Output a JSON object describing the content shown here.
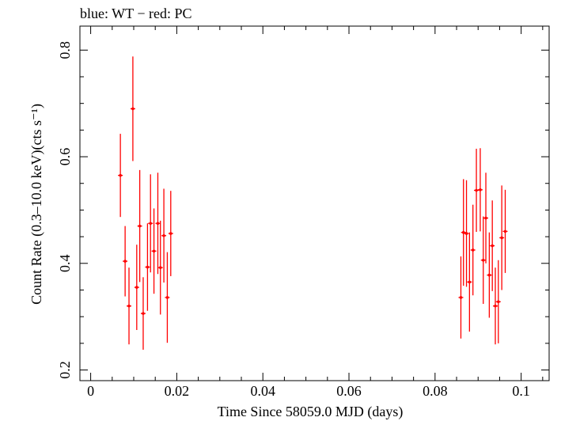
{
  "header": {
    "title": "blue: WT − red: PC"
  },
  "colors": {
    "pc": "#ff0000",
    "axis": "#000000",
    "background": "#ffffff"
  },
  "chart_data": {
    "type": "scatter",
    "title": "blue: WT − red: PC",
    "xlabel": "Time Since 58059.0 MJD (days)",
    "ylabel": "Count Rate (0.3–10.0 keV)(cts s⁻¹)",
    "xlim": [
      -0.0025,
      0.1065
    ],
    "ylim": [
      0.18,
      0.845
    ],
    "xticks": {
      "values": [
        0,
        0.02,
        0.04,
        0.06,
        0.08,
        0.1
      ],
      "labels": [
        "0",
        "0.02",
        "0.04",
        "0.06",
        "0.08",
        "0.1"
      ]
    },
    "yticks": {
      "values": [
        0.2,
        0.4,
        0.6,
        0.8
      ],
      "labels": [
        "0.2",
        "0.4",
        "0.6",
        "0.8"
      ]
    },
    "grid": false,
    "legend": "none",
    "series": [
      {
        "color": "#ff0000",
        "points": [
          {
            "x": 0.0069,
            "y": 0.565,
            "yerr": 0.078
          },
          {
            "x": 0.008,
            "y": 0.404,
            "yerr": 0.066
          },
          {
            "x": 0.0089,
            "y": 0.32,
            "yerr": 0.072
          },
          {
            "x": 0.0098,
            "y": 0.69,
            "yerr": 0.098
          },
          {
            "x": 0.0107,
            "y": 0.355,
            "yerr": 0.08
          },
          {
            "x": 0.0114,
            "y": 0.47,
            "yerr": 0.105
          },
          {
            "x": 0.0122,
            "y": 0.306,
            "yerr": 0.068
          },
          {
            "x": 0.0132,
            "y": 0.393,
            "yerr": 0.082
          },
          {
            "x": 0.0139,
            "y": 0.475,
            "yerr": 0.092
          },
          {
            "x": 0.0147,
            "y": 0.423,
            "yerr": 0.08
          },
          {
            "x": 0.0156,
            "y": 0.475,
            "yerr": 0.095
          },
          {
            "x": 0.0162,
            "y": 0.392,
            "yerr": 0.088
          },
          {
            "x": 0.017,
            "y": 0.452,
            "yerr": 0.088
          },
          {
            "x": 0.0178,
            "y": 0.336,
            "yerr": 0.085
          },
          {
            "x": 0.0186,
            "y": 0.456,
            "yerr": 0.08
          },
          {
            "x": 0.086,
            "y": 0.336,
            "yerr": 0.077
          },
          {
            "x": 0.0866,
            "y": 0.458,
            "yerr": 0.1
          },
          {
            "x": 0.0873,
            "y": 0.456,
            "yerr": 0.1
          },
          {
            "x": 0.088,
            "y": 0.365,
            "yerr": 0.093
          },
          {
            "x": 0.0888,
            "y": 0.425,
            "yerr": 0.085
          },
          {
            "x": 0.0896,
            "y": 0.537,
            "yerr": 0.078
          },
          {
            "x": 0.0905,
            "y": 0.538,
            "yerr": 0.078
          },
          {
            "x": 0.0912,
            "y": 0.406,
            "yerr": 0.082
          },
          {
            "x": 0.0918,
            "y": 0.485,
            "yerr": 0.085
          },
          {
            "x": 0.0926,
            "y": 0.378,
            "yerr": 0.08
          },
          {
            "x": 0.0933,
            "y": 0.433,
            "yerr": 0.085
          },
          {
            "x": 0.094,
            "y": 0.32,
            "yerr": 0.072
          },
          {
            "x": 0.0947,
            "y": 0.328,
            "yerr": 0.078
          },
          {
            "x": 0.0955,
            "y": 0.448,
            "yerr": 0.098
          },
          {
            "x": 0.0963,
            "y": 0.46,
            "yerr": 0.078
          }
        ]
      }
    ]
  }
}
